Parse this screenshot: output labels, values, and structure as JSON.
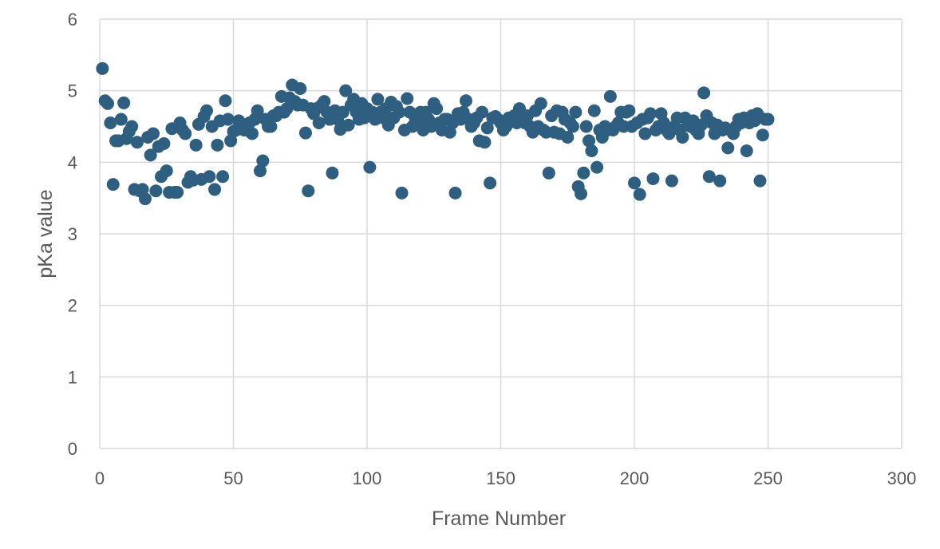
{
  "chart_data": {
    "type": "scatter",
    "title": "",
    "xlabel": "Frame Number",
    "ylabel": "pKa value",
    "xlim": [
      0,
      300
    ],
    "ylim": [
      0,
      6
    ],
    "x_ticks": [
      0,
      50,
      100,
      150,
      200,
      250,
      300
    ],
    "y_ticks": [
      0,
      1,
      2,
      3,
      4,
      5,
      6
    ],
    "x_tick_labels": [
      "0",
      "50",
      "100",
      "150",
      "200",
      "250",
      "300"
    ],
    "y_tick_labels": [
      "0",
      "1",
      "2",
      "3",
      "4",
      "5",
      "6"
    ],
    "grid": true,
    "legend": "none",
    "marker_color": "#2e5f80",
    "series": [
      {
        "points": [
          [
            1,
            5.31
          ],
          [
            2,
            4.86
          ],
          [
            3,
            4.82
          ],
          [
            4,
            4.55
          ],
          [
            5,
            3.69
          ],
          [
            6,
            4.3
          ],
          [
            7,
            4.3
          ],
          [
            8,
            4.6
          ],
          [
            9,
            4.83
          ],
          [
            10,
            4.33
          ],
          [
            11,
            4.43
          ],
          [
            12,
            4.5
          ],
          [
            13,
            3.62
          ],
          [
            14,
            4.28
          ],
          [
            15,
            3.6
          ],
          [
            16,
            3.62
          ],
          [
            17,
            3.49
          ],
          [
            18,
            4.35
          ],
          [
            19,
            4.1
          ],
          [
            20,
            4.4
          ],
          [
            21,
            3.6
          ],
          [
            22,
            4.22
          ],
          [
            23,
            3.8
          ],
          [
            24,
            4.26
          ],
          [
            25,
            3.88
          ],
          [
            26,
            3.58
          ],
          [
            27,
            4.47
          ],
          [
            28,
            3.58
          ],
          [
            29,
            3.58
          ],
          [
            30,
            4.55
          ],
          [
            31,
            4.45
          ],
          [
            32,
            4.4
          ],
          [
            33,
            3.72
          ],
          [
            34,
            3.8
          ],
          [
            35,
            3.75
          ],
          [
            36,
            4.24
          ],
          [
            37,
            4.53
          ],
          [
            38,
            3.76
          ],
          [
            39,
            4.64
          ],
          [
            40,
            4.72
          ],
          [
            41,
            3.8
          ],
          [
            42,
            4.5
          ],
          [
            43,
            3.62
          ],
          [
            44,
            4.24
          ],
          [
            45,
            4.58
          ],
          [
            46,
            3.8
          ],
          [
            47,
            4.86
          ],
          [
            48,
            4.6
          ],
          [
            49,
            4.3
          ],
          [
            50,
            4.43
          ],
          [
            51,
            4.45
          ],
          [
            52,
            4.58
          ],
          [
            53,
            4.52
          ],
          [
            54,
            4.45
          ],
          [
            55,
            4.45
          ],
          [
            56,
            4.55
          ],
          [
            57,
            4.4
          ],
          [
            58,
            4.6
          ],
          [
            59,
            4.72
          ],
          [
            60,
            3.88
          ],
          [
            61,
            4.02
          ],
          [
            62,
            4.6
          ],
          [
            63,
            4.5
          ],
          [
            64,
            4.5
          ],
          [
            65,
            4.65
          ],
          [
            66,
            4.65
          ],
          [
            67,
            4.7
          ],
          [
            68,
            4.92
          ],
          [
            69,
            4.7
          ],
          [
            70,
            4.75
          ],
          [
            71,
            4.9
          ],
          [
            72,
            5.08
          ],
          [
            73,
            4.85
          ],
          [
            74,
            4.8
          ],
          [
            75,
            5.03
          ],
          [
            76,
            4.8
          ],
          [
            77,
            4.41
          ],
          [
            78,
            3.6
          ],
          [
            79,
            4.75
          ],
          [
            80,
            4.68
          ],
          [
            81,
            4.75
          ],
          [
            82,
            4.55
          ],
          [
            83,
            4.8
          ],
          [
            84,
            4.85
          ],
          [
            85,
            4.7
          ],
          [
            86,
            4.6
          ],
          [
            87,
            3.85
          ],
          [
            88,
            4.72
          ],
          [
            89,
            4.6
          ],
          [
            90,
            4.46
          ],
          [
            91,
            4.7
          ],
          [
            92,
            5.0
          ],
          [
            93,
            4.52
          ],
          [
            94,
            4.8
          ],
          [
            95,
            4.88
          ],
          [
            96,
            4.7
          ],
          [
            97,
            4.6
          ],
          [
            98,
            4.82
          ],
          [
            99,
            4.62
          ],
          [
            100,
            4.75
          ],
          [
            101,
            3.93
          ],
          [
            102,
            4.7
          ],
          [
            103,
            4.6
          ],
          [
            104,
            4.88
          ],
          [
            105,
            4.7
          ],
          [
            106,
            4.62
          ],
          [
            107,
            4.75
          ],
          [
            108,
            4.52
          ],
          [
            109,
            4.84
          ],
          [
            110,
            4.62
          ],
          [
            111,
            4.78
          ],
          [
            112,
            4.7
          ],
          [
            113,
            3.57
          ],
          [
            114,
            4.45
          ],
          [
            115,
            4.89
          ],
          [
            116,
            4.7
          ],
          [
            117,
            4.5
          ],
          [
            118,
            4.62
          ],
          [
            119,
            4.55
          ],
          [
            120,
            4.7
          ],
          [
            121,
            4.45
          ],
          [
            122,
            4.7
          ],
          [
            123,
            4.6
          ],
          [
            124,
            4.5
          ],
          [
            125,
            4.82
          ],
          [
            126,
            4.75
          ],
          [
            127,
            4.55
          ],
          [
            128,
            4.45
          ],
          [
            129,
            4.6
          ],
          [
            130,
            4.6
          ],
          [
            131,
            4.42
          ],
          [
            132,
            4.55
          ],
          [
            133,
            3.57
          ],
          [
            134,
            4.68
          ],
          [
            135,
            4.6
          ],
          [
            136,
            4.7
          ],
          [
            137,
            4.86
          ],
          [
            138,
            4.6
          ],
          [
            139,
            4.5
          ],
          [
            140,
            4.55
          ],
          [
            141,
            4.62
          ],
          [
            142,
            4.3
          ],
          [
            143,
            4.7
          ],
          [
            144,
            4.28
          ],
          [
            145,
            4.48
          ],
          [
            146,
            3.71
          ],
          [
            147,
            4.62
          ],
          [
            148,
            4.64
          ],
          [
            149,
            4.6
          ],
          [
            150,
            4.55
          ],
          [
            151,
            4.45
          ],
          [
            152,
            4.5
          ],
          [
            153,
            4.62
          ],
          [
            154,
            4.58
          ],
          [
            155,
            4.65
          ],
          [
            156,
            4.55
          ],
          [
            157,
            4.75
          ],
          [
            158,
            4.62
          ],
          [
            159,
            4.55
          ],
          [
            160,
            4.65
          ],
          [
            161,
            4.5
          ],
          [
            162,
            4.42
          ],
          [
            163,
            4.72
          ],
          [
            164,
            4.5
          ],
          [
            165,
            4.82
          ],
          [
            166,
            4.45
          ],
          [
            167,
            4.42
          ],
          [
            168,
            3.85
          ],
          [
            169,
            4.65
          ],
          [
            170,
            4.42
          ],
          [
            171,
            4.72
          ],
          [
            172,
            4.4
          ],
          [
            173,
            4.7
          ],
          [
            174,
            4.6
          ],
          [
            175,
            4.35
          ],
          [
            176,
            4.55
          ],
          [
            177,
            4.5
          ],
          [
            178,
            4.7
          ],
          [
            179,
            3.66
          ],
          [
            180,
            3.56
          ],
          [
            181,
            3.85
          ],
          [
            182,
            4.5
          ],
          [
            183,
            4.3
          ],
          [
            184,
            4.16
          ],
          [
            185,
            4.72
          ],
          [
            186,
            3.93
          ],
          [
            187,
            4.45
          ],
          [
            188,
            4.35
          ],
          [
            189,
            4.5
          ],
          [
            190,
            4.45
          ],
          [
            191,
            4.92
          ],
          [
            192,
            4.45
          ],
          [
            193,
            4.5
          ],
          [
            194,
            4.55
          ],
          [
            195,
            4.7
          ],
          [
            196,
            4.5
          ],
          [
            197,
            4.7
          ],
          [
            198,
            4.72
          ],
          [
            199,
            4.5
          ],
          [
            200,
            3.71
          ],
          [
            201,
            4.55
          ],
          [
            202,
            3.55
          ],
          [
            203,
            4.6
          ],
          [
            204,
            4.4
          ],
          [
            205,
            4.62
          ],
          [
            206,
            4.68
          ],
          [
            207,
            3.77
          ],
          [
            208,
            4.45
          ],
          [
            209,
            4.5
          ],
          [
            210,
            4.68
          ],
          [
            211,
            4.55
          ],
          [
            212,
            4.45
          ],
          [
            213,
            4.4
          ],
          [
            214,
            3.74
          ],
          [
            215,
            4.5
          ],
          [
            216,
            4.62
          ],
          [
            217,
            4.45
          ],
          [
            218,
            4.35
          ],
          [
            219,
            4.62
          ],
          [
            220,
            4.55
          ],
          [
            221,
            4.5
          ],
          [
            222,
            4.58
          ],
          [
            223,
            4.45
          ],
          [
            224,
            4.4
          ],
          [
            225,
            4.52
          ],
          [
            226,
            4.97
          ],
          [
            227,
            4.65
          ],
          [
            228,
            3.8
          ],
          [
            229,
            4.55
          ],
          [
            230,
            4.4
          ],
          [
            231,
            4.52
          ],
          [
            232,
            3.74
          ],
          [
            233,
            4.45
          ],
          [
            234,
            4.48
          ],
          [
            235,
            4.2
          ],
          [
            236,
            4.45
          ],
          [
            237,
            4.4
          ],
          [
            238,
            4.5
          ],
          [
            239,
            4.6
          ],
          [
            240,
            4.55
          ],
          [
            241,
            4.62
          ],
          [
            242,
            4.16
          ],
          [
            243,
            4.55
          ],
          [
            244,
            4.65
          ],
          [
            245,
            4.58
          ],
          [
            246,
            4.68
          ],
          [
            247,
            3.74
          ],
          [
            248,
            4.38
          ],
          [
            249,
            4.6
          ],
          [
            250,
            4.6
          ]
        ]
      }
    ]
  }
}
